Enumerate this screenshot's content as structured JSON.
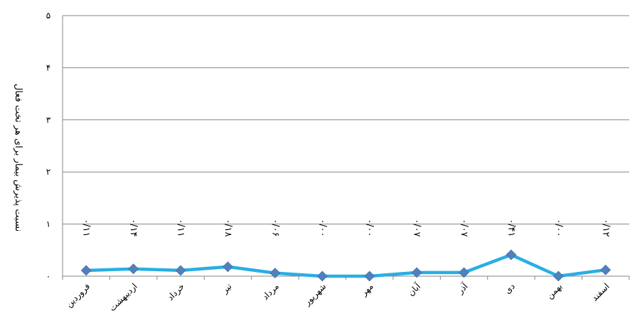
{
  "chart_data": {
    "type": "line",
    "ylabel": "نسبت پذیرش بیمار برای هر تخت فعال",
    "ytick_labels": [
      "۰",
      "۱",
      "۲",
      "۳",
      "۴",
      "۵"
    ],
    "ylim": [
      0,
      5
    ],
    "grid": true,
    "categories": [
      "فروردین",
      "اردیبهشت",
      "خرداد",
      "تیر",
      "مرداد",
      "شهریور",
      "مهر",
      "آبان",
      "آذر",
      "دی",
      "بهمن",
      "اسفند"
    ],
    "values": [
      0.11,
      0.14,
      0.11,
      0.18,
      0.06,
      0.0,
      0.0,
      0.07,
      0.07,
      0.41,
      0.0,
      0.12
    ],
    "data_labels": [
      "۰/۱۱",
      "۰/۱۴",
      "۰/۱۱",
      "۰/۱۸",
      "۰/۰۶",
      "۰/۰۰",
      "۰/۰۰",
      "۰/۰۷",
      "۰/۰۷",
      "۰/۴۱",
      "۰/۰۰",
      "۰/۱۲"
    ],
    "series_color": "#2aaee3",
    "marker_color": "#4f81bd",
    "grid_color": "#868686"
  }
}
